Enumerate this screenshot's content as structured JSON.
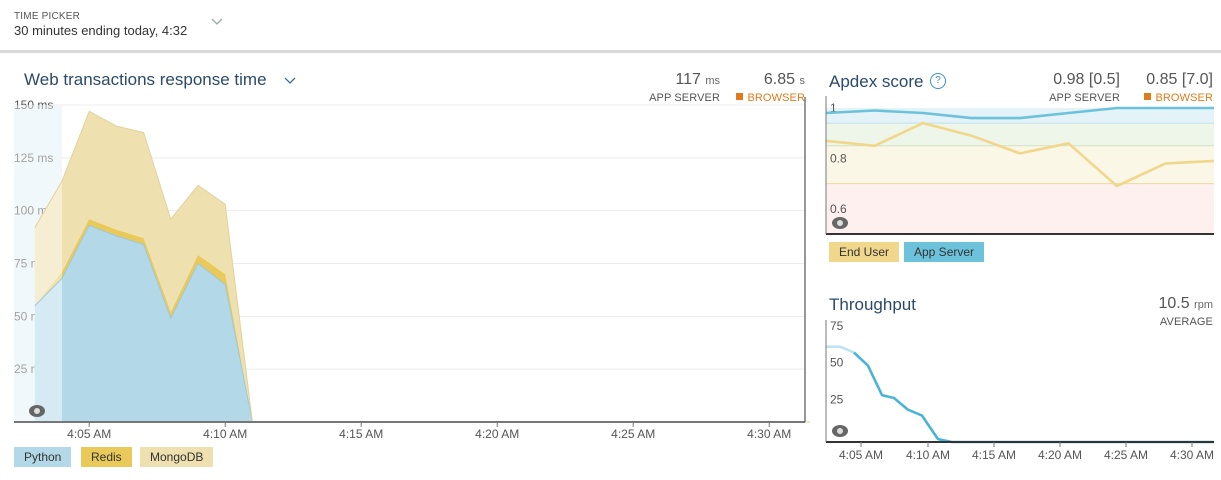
{
  "time_picker": {
    "label": "TIME PICKER",
    "value": "30 minutes ending today, 4:32",
    "icon": "chevron-down-icon"
  },
  "response_time": {
    "title": "Web transactions response time",
    "app_server_value": "117",
    "app_server_unit": "ms",
    "app_server_label": "APP SERVER",
    "browser_value": "6.85",
    "browser_unit": "s",
    "browser_label": "BROWSER",
    "legend": [
      "Python",
      "Redis",
      "MongoDB"
    ],
    "colors": {
      "python": "#b3d9e8",
      "redis": "#e9c95a",
      "mongodb": "#efe0b0"
    }
  },
  "apdex": {
    "title": "Apdex score",
    "app_server_value": "0.98 [0.5]",
    "app_server_label": "APP SERVER",
    "browser_value": "0.85 [7.0]",
    "browser_label": "BROWSER",
    "legend": [
      "End User",
      "App Server"
    ],
    "colors": {
      "end_user": "#f0d78c",
      "app_server": "#6cc2db"
    }
  },
  "throughput": {
    "title": "Throughput",
    "value": "10.5",
    "unit": "rpm",
    "label": "AVERAGE",
    "color": "#4ab4d6"
  },
  "chart_data": [
    {
      "type": "area",
      "title": "Web transactions response time",
      "x": [
        "4:03",
        "4:04",
        "4:05",
        "4:06",
        "4:07",
        "4:08",
        "4:09",
        "4:10",
        "4:11",
        "4:11.5",
        "4:31"
      ],
      "x_ticks": [
        "4:05 AM",
        "4:10 AM",
        "4:15 AM",
        "4:20 AM",
        "4:25 AM",
        "4:30 AM"
      ],
      "y_ticks": [
        "150 ms",
        "125 ms",
        "100 ms",
        "75 ms",
        "50 ms",
        "25 ms"
      ],
      "ylim": [
        0,
        150
      ],
      "series": [
        {
          "name": "Python",
          "values": [
            55,
            68,
            93,
            88,
            84,
            49,
            75,
            65,
            0,
            0,
            0
          ]
        },
        {
          "name": "Redis",
          "values": [
            0,
            3,
            3,
            3,
            3,
            3,
            4,
            5,
            0,
            0,
            0
          ]
        },
        {
          "name": "MongoDB",
          "values": [
            37,
            43,
            51,
            49,
            50,
            44,
            33,
            33,
            0,
            0,
            0
          ]
        }
      ]
    },
    {
      "type": "line",
      "title": "Apdex score",
      "x_ticks": [],
      "y_ticks": [
        "1",
        "0.8",
        "0.6"
      ],
      "ylim": [
        0.5,
        1.0
      ],
      "series": [
        {
          "name": "End User",
          "values": [
            0.87,
            0.85,
            0.94,
            0.89,
            0.82,
            0.86,
            0.69,
            0.78,
            0.79
          ]
        },
        {
          "name": "App Server",
          "values": [
            0.98,
            0.99,
            0.98,
            0.96,
            0.96,
            0.98,
            1.0,
            1.0,
            1.0
          ]
        }
      ]
    },
    {
      "type": "line",
      "title": "Throughput",
      "x_ticks": [
        "4:05 AM",
        "4:10 AM",
        "4:15 AM",
        "4:20 AM",
        "4:25 AM",
        "4:30 AM"
      ],
      "y_ticks": [
        "75",
        "50",
        "25"
      ],
      "ylim": [
        0,
        75
      ],
      "series": [
        {
          "name": "Throughput",
          "values": [
            65,
            65,
            61,
            52,
            32,
            30,
            22,
            18,
            2,
            0,
            0,
            0,
            0,
            0,
            0
          ]
        }
      ]
    }
  ]
}
